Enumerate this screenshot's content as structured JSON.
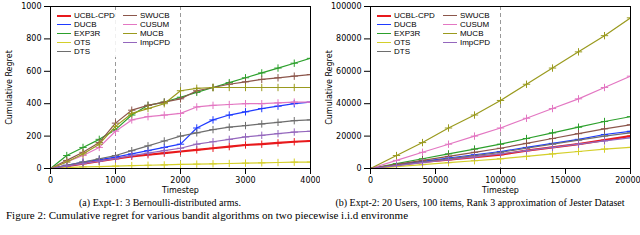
{
  "caption": "Figure 2: Cumulative regret for various bandit algorithms on two piecewise i.i.d environme",
  "chart_data": [
    {
      "type": "line",
      "title": "(a) Expt-1: 3 Bernoulli-distributed arms.",
      "x_label": "Timestep",
      "y_label": "Cumulative Regret",
      "x": [
        0,
        250,
        500,
        750,
        1000,
        1250,
        1500,
        1750,
        2000,
        2250,
        2500,
        2750,
        3000,
        3250,
        3500,
        3750,
        4000
      ],
      "xlim": [
        0,
        4000
      ],
      "xticks": [
        0,
        1000,
        2000,
        3000,
        4000
      ],
      "ylim": [
        0,
        1000
      ],
      "yticks": [
        0,
        200,
        400,
        600,
        800,
        1000
      ],
      "change_points": [
        1000,
        2000
      ],
      "grid": false,
      "legend": "upper left",
      "marker": "plus",
      "series": [
        {
          "name": "UCBL-CPD",
          "color": "#e8191c",
          "values": [
            0,
            15,
            30,
            45,
            60,
            75,
            85,
            95,
            105,
            115,
            125,
            135,
            145,
            150,
            158,
            165,
            170
          ]
        },
        {
          "name": "DUCB",
          "color": "#1f3bff",
          "values": [
            0,
            20,
            40,
            55,
            70,
            90,
            110,
            130,
            150,
            250,
            300,
            330,
            350,
            370,
            385,
            400,
            410
          ]
        },
        {
          "name": "EXP3R",
          "color": "#2ca02c",
          "values": [
            0,
            80,
            130,
            180,
            240,
            330,
            390,
            410,
            440,
            470,
            500,
            530,
            560,
            590,
            620,
            650,
            680
          ]
        },
        {
          "name": "OTS",
          "color": "#d4cf2a",
          "values": [
            0,
            5,
            10,
            12,
            15,
            18,
            20,
            22,
            25,
            27,
            29,
            31,
            33,
            35,
            37,
            39,
            40
          ]
        },
        {
          "name": "DTS",
          "color": "#6e6e6e",
          "values": [
            0,
            20,
            40,
            60,
            80,
            110,
            140,
            170,
            200,
            220,
            240,
            255,
            265,
            275,
            285,
            295,
            300
          ]
        },
        {
          "name": "SWUCB",
          "color": "#8c564b",
          "values": [
            0,
            50,
            100,
            160,
            280,
            360,
            390,
            410,
            430,
            480,
            500,
            520,
            535,
            550,
            560,
            570,
            580
          ]
        },
        {
          "name": "CUSUM",
          "color": "#e377c2",
          "values": [
            0,
            40,
            80,
            130,
            230,
            300,
            320,
            330,
            340,
            380,
            390,
            395,
            400,
            400,
            405,
            410,
            410
          ]
        },
        {
          "name": "MUCB",
          "color": "#9a9a1e",
          "values": [
            0,
            40,
            90,
            150,
            260,
            340,
            370,
            400,
            480,
            495,
            500,
            500,
            500,
            500,
            500,
            500,
            500
          ]
        },
        {
          "name": "ImpCPD",
          "color": "#9467bd",
          "values": [
            0,
            15,
            30,
            45,
            60,
            80,
            95,
            110,
            125,
            150,
            165,
            180,
            195,
            205,
            215,
            225,
            230
          ]
        }
      ]
    },
    {
      "type": "line",
      "title": "(b) Expt-2: 20 Users, 100 items, Rank 3 approximation of Jester Dataset",
      "x_label": "Timestep",
      "y_label": "Cumulative Regret",
      "x": [
        0,
        20000,
        40000,
        60000,
        80000,
        100000,
        120000,
        140000,
        160000,
        180000,
        200000
      ],
      "xlim": [
        0,
        200000
      ],
      "xticks": [
        0,
        50000,
        100000,
        150000,
        200000
      ],
      "ylim": [
        0,
        100000
      ],
      "yticks": [
        0,
        20000,
        40000,
        60000,
        80000,
        100000
      ],
      "change_points": [
        100000
      ],
      "grid": false,
      "legend": "upper left",
      "marker": "plus",
      "series": [
        {
          "name": "UCBL-CPD",
          "color": "#e8191c",
          "values": [
            0,
            2000,
            4000,
            5500,
            7000,
            8500,
            11000,
            13000,
            15000,
            17500,
            20000
          ]
        },
        {
          "name": "DUCB",
          "color": "#1f3bff",
          "values": [
            0,
            2200,
            4400,
            6500,
            8500,
            10500,
            13000,
            15500,
            18000,
            21000,
            23000
          ]
        },
        {
          "name": "EXP3R",
          "color": "#2ca02c",
          "values": [
            0,
            3000,
            6000,
            9000,
            12000,
            15000,
            18500,
            22000,
            25500,
            29000,
            32000
          ]
        },
        {
          "name": "OTS",
          "color": "#d4cf2a",
          "values": [
            0,
            1200,
            2400,
            3600,
            4800,
            6000,
            7500,
            9000,
            10500,
            12000,
            13000
          ]
        },
        {
          "name": "DTS",
          "color": "#6e6e6e",
          "values": [
            0,
            2000,
            4000,
            6000,
            8000,
            10000,
            12500,
            15000,
            17500,
            20000,
            22000
          ]
        },
        {
          "name": "SWUCB",
          "color": "#8c564b",
          "values": [
            0,
            2500,
            5000,
            7500,
            10000,
            12500,
            15500,
            18500,
            21500,
            24500,
            27000
          ]
        },
        {
          "name": "CUSUM",
          "color": "#e377c2",
          "values": [
            0,
            5000,
            10000,
            15000,
            20000,
            25000,
            31000,
            37000,
            43000,
            50000,
            57000
          ]
        },
        {
          "name": "MUCB",
          "color": "#9a9a1e",
          "values": [
            0,
            8000,
            16000,
            25000,
            33000,
            42000,
            52000,
            62000,
            72000,
            82000,
            93000
          ]
        },
        {
          "name": "ImpCPD",
          "color": "#9467bd",
          "values": [
            0,
            1800,
            3600,
            5400,
            7200,
            9000,
            11000,
            13000,
            15000,
            17000,
            19000
          ]
        }
      ]
    }
  ]
}
